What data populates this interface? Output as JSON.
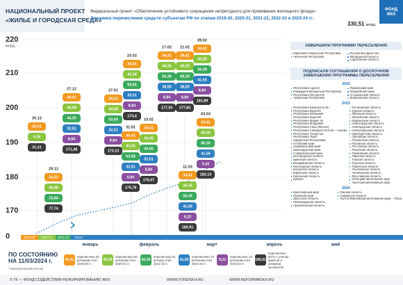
{
  "header": {
    "title_line1": "НАЦИОНАЛЬНЫЙ ПРОЕКТ",
    "title_line2": "«ЖИЛЬЕ И ГОРОДСКАЯ СРЕДА»",
    "project": "Федеральный проект «Обеспечение устойчивого сокращения непригодного для проживания жилищного фонда»",
    "subtitle": "Динамика перечисления средств субъектам РФ по этапам 2019-20, 2020-21, 2021-22, 2022-23 и 2023-24 гг.",
    "total": "330,51",
    "total_unit": "млрд.",
    "logo_line1": "ФОНД",
    "logo_line2": "ЖКХ"
  },
  "axis": {
    "labels": [
      "220",
      "210",
      "200",
      "190",
      "180",
      "170",
      "0"
    ],
    "unit": "млрд.",
    "stages": [
      "2019-20",
      "2020-21",
      "2021-22",
      "2022 г."
    ],
    "months": [
      "январь",
      "февраль",
      "март",
      "апрель",
      "май"
    ]
  },
  "columns": [
    {
      "date": "26.12",
      "pills": [
        "26,01",
        "5,29",
        "31,31"
      ],
      "colors": [
        "#f29a20",
        "#8bc53f",
        "#3a3a3a"
      ]
    },
    {
      "date": "29.12",
      "pills": [
        "34,22",
        "28,48",
        "15,84",
        "77,74"
      ],
      "colors": [
        "#f29a20",
        "#8bc53f",
        "#3aaa5c",
        "#3a3a3a"
      ]
    },
    {
      "date": "27.12",
      "pills": [
        "34,41",
        "44,09",
        "44,30",
        "32,51",
        "8,84",
        "171,48"
      ],
      "colors": [
        "#f29a20",
        "#8bc53f",
        "#3aaa5c",
        "#2e7fc1",
        "#8a4fa0",
        "#3a3a3a"
      ]
    },
    {
      "date": "27.01",
      "pills": [
        "34,41",
        "44,09",
        "53,93",
        "32,51",
        "8,84",
        "173,13"
      ],
      "colors": [
        "#f29a20",
        "#8bc53f",
        "#3aaa5c",
        "#2e7fc1",
        "#8a4fa0",
        "#3a3a3a"
      ]
    },
    {
      "date": "23.02",
      "pills": [
        "34,41",
        "44,18",
        "55,65",
        "33,31",
        "8,84",
        "174,4"
      ],
      "colors": [
        "#f29a20",
        "#8bc53f",
        "#3aaa5c",
        "#2e7fc1",
        "#8a4fa0",
        "#3a3a3a"
      ]
    },
    {
      "date": "31.01",
      "pills": [
        "34,41",
        "44,35",
        "53,58",
        "32,51",
        "8,84",
        "175,78"
      ],
      "colors": [
        "#f29a20",
        "#8bc53f",
        "#3aaa5c",
        "#2e7fc1",
        "#8a4fa0",
        "#3a3a3a"
      ]
    },
    {
      "date": "10.02",
      "pills": [
        "34,41",
        "44,35",
        "55,65",
        "32,51",
        "8,84",
        "176,07"
      ],
      "colors": [
        "#f29a20",
        "#8bc53f",
        "#3aaa5c",
        "#2e7fc1",
        "#8a4fa0",
        "#3a3a3a"
      ]
    },
    {
      "date": "17.02",
      "pills": [
        "34,41",
        "44,35",
        "56,39",
        "38,55",
        "8,84",
        "177,55"
      ],
      "colors": [
        "#f29a20",
        "#8bc53f",
        "#3aaa5c",
        "#2e7fc1",
        "#8a4fa0",
        "#3a3a3a"
      ]
    },
    {
      "date": "21.02",
      "pills": [
        "34,41",
        "44,35",
        "56,39",
        "38,55",
        "8,84",
        "177,82"
      ],
      "colors": [
        "#f29a20",
        "#8bc53f",
        "#3aaa5c",
        "#2e7fc1",
        "#8a4fa0",
        "#3a3a3a"
      ]
    },
    {
      "date": "28.02",
      "pills": [
        "34,41",
        "44,35",
        "56,39",
        "41,55",
        "8,84",
        "181,89"
      ],
      "colors": [
        "#f29a20",
        "#8bc53f",
        "#3aaa5c",
        "#2e7fc1",
        "#8a4fa0",
        "#3a3a3a"
      ]
    },
    {
      "date": "03.03",
      "pills": [
        "34,41",
        "44,35",
        "56,39",
        "41,55",
        "5,43",
        "182,13"
      ],
      "colors": [
        "#f29a20",
        "#8bc53f",
        "#3aaa5c",
        "#2e7fc1",
        "#8a4fa0",
        "#3a3a3a"
      ]
    },
    {
      "date": "11.03",
      "pills": [
        "34,41",
        "44,35",
        "56,39",
        "41,55",
        "9,22",
        "185,91"
      ],
      "colors": [
        "#f29a20",
        "#8bc53f",
        "#3aaa5c",
        "#2e7fc1",
        "#8a4fa0",
        "#3a3a3a"
      ]
    }
  ],
  "completed": {
    "title": "ЗАВЕРШИЛИ ПРОГРАММУ ПЕРЕСЕЛЕНИЯ",
    "left": [
      "Карачаево-Черкесская Республика",
      "Чеченская Республика"
    ],
    "right": [
      "Республика Дагестан",
      "Магаданская область",
      "Саратовская область"
    ]
  },
  "early": {
    "title": "ПОДПИСАЛИ СОГЛАШЕНИЯ О ДОСРОЧНОМ ЗАВЕРШЕНИИ ПРОГРАММЫ ПЕРЕСЕЛЕНИЯ",
    "groups": [
      {
        "year": "2022",
        "left": [
          "Республика Адыгея",
          "Кабардино-Балкарская Республика",
          "Республика Ингушетия",
          "Чувашская Республика"
        ],
        "right": [
          "Приморский край",
          "Хабаровский край",
          "Астраханская область",
          "Воронежская область"
        ]
      },
      {
        "year": "2023",
        "left": [
          "Республика Башкортостан",
          "Республика Бурятия",
          "Республика Калмыкия",
          "Республика Карелия",
          "Республика Марий Эл",
          "Республика Мордовия",
          "Республика Саха (Якутия)",
          "Республика Северная Осетия – Алания",
          "Республика Татарстан",
          "Республика Тыва",
          "Удмуртская Республика",
          "Алтайский край",
          "Забайкальский край",
          "Краснодарский край",
          "Ставропольский край",
          "Белгородская область",
          "Брянская область",
          "Владимирская область",
          "Вологодская область",
          "Калужская область",
          "Кировская область",
          "Курганская область",
          "Кузбасс"
        ],
        "right": [
          "Костромская область",
          "Курская область",
          "Липецкая область",
          "Московская область",
          "Мурманская область",
          "Нижегородская область",
          "Новгородская область",
          "Новосибирская область",
          "Оренбургская область",
          "Орловская область",
          "Пензенская область",
          "Псковская область",
          "Ростовская область",
          "Рязанская область",
          "Тамбовская область",
          "Тверская область",
          "Томская область",
          "Тульская область",
          "Тюменская область",
          "Ульяновская область",
          "Челябинская область",
          "Ярославская область",
          "Ненецкий автономный округ",
          "Чукотский автономный округ"
        ]
      },
      {
        "year": "2024",
        "left": [
          "Красноярский край",
          "Пермский край",
          "Иркутская область",
          "Ленинградская область",
          "Архангельская область"
        ],
        "right": [
          "Омская область",
          "Самарская область",
          "Ханты-Мансийский автономный округ – Югра"
        ]
      }
    ]
  },
  "legend": {
    "as_of": "ПО СОСТОЯНИЮ НА 11/03/2024 г.",
    "note": "* накопительным итогом",
    "items": [
      {
        "value": "34,41",
        "text": "перечислено 82 регионам этап 2019-20 гг.",
        "color": "#f29a20"
      },
      {
        "value": "44,35",
        "text": "перечислено 82 регионам этап 2020-21 гг.",
        "color": "#8bc53f"
      },
      {
        "value": "56,39",
        "text": "перечислено 81 региону этап 2021-22 гг.",
        "color": "#3aaa5c"
      },
      {
        "value": "41,55",
        "text": "перечислено 73 регионам этап 2022-23 гг.",
        "color": "#2e7fc1"
      },
      {
        "value": "9,22",
        "text": "перечислено 13 регионам этап 2023-24 гг.",
        "color": "#8a4fa0"
      },
      {
        "value": "185,91",
        "text": "перечислено всего с учетом авансов и резервов контрактов",
        "color": "#3a3a3a"
      }
    ]
  },
  "footer": {
    "org": "© ГК — ФОНД СОДЕЙСТВИЯ РЕФОРМИРОВАНИЮ ЖКХ",
    "site1": "WWW.FONDGKH.RU",
    "site2": "WWW.REFORMAGKH.RU"
  }
}
